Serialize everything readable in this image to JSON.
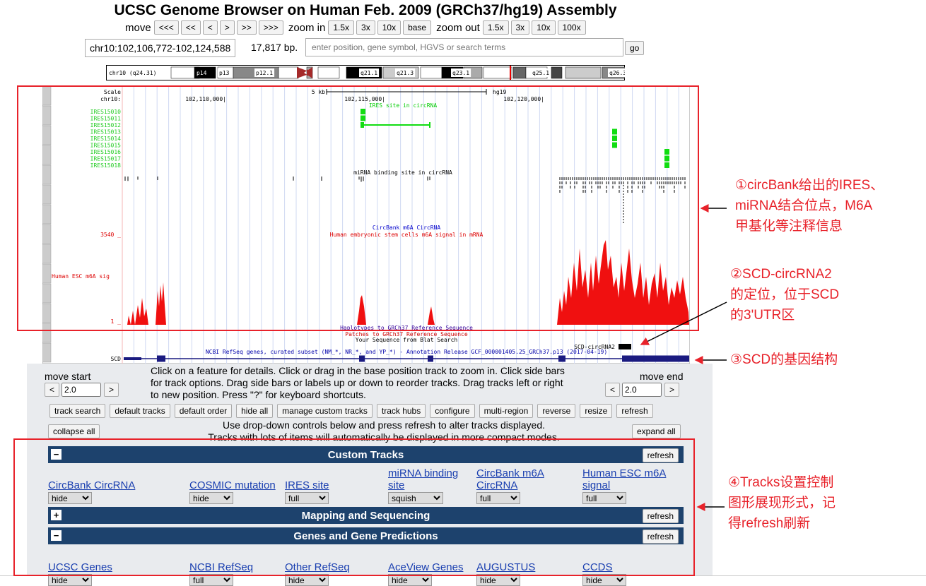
{
  "header": {
    "title": "UCSC Genome Browser on Human Feb. 2009 (GRCh37/hg19) Assembly"
  },
  "navigation": {
    "move_label": "move",
    "move_buttons": [
      "<<<",
      "<<",
      "<",
      ">",
      ">>",
      ">>>"
    ],
    "zoom_in_label": "zoom in",
    "zoom_in_buttons": [
      "1.5x",
      "3x",
      "10x",
      "base"
    ],
    "zoom_out_label": "zoom out",
    "zoom_out_buttons": [
      "1.5x",
      "3x",
      "10x",
      "100x"
    ]
  },
  "position": {
    "range": "chr10:102,106,772-102,124,588",
    "size": "17,817 bp.",
    "search_placeholder": "enter position, gene symbol, HGVS or search terms",
    "go_button": "go"
  },
  "ideogram": {
    "label": "chr10 (q24.31)",
    "bands": [
      "p14",
      "p13",
      "p12.1",
      "q21.1",
      "q21.3",
      "q23.1",
      "q25.1",
      "q26.3"
    ]
  },
  "tracks_image": {
    "scale_label": "Scale",
    "chrom_label": "chr10:",
    "scale_bar": "5 kb",
    "assembly": "hg19",
    "positions": [
      "102,110,000|",
      "102,115,000|",
      "102,120,000|"
    ],
    "ires_title": "IRES site in circRNA",
    "ires_items": [
      "IRES15010",
      "IRES15011",
      "IRES15012",
      "IRES15013",
      "IRES15014",
      "IRES15015",
      "IRES15016",
      "IRES15017",
      "IRES15018"
    ],
    "mirna_title": "miRNA binding site in circRNA",
    "m6a_circrna_title": "CircBank m6A CircRNA",
    "esc_title": "Human embryonic stem cells m6A signal in mRNA",
    "esc_max": "3540 _",
    "esc_label": "Human ESC m6A sig",
    "esc_min": "1 _",
    "haplotypes": "Haplotypes to GRCh37 Reference Sequence",
    "patches": "Patches to GRCh37 Reference Sequence",
    "blat": "Your Sequence from Blat Search",
    "circ_item": "SCD-circRNA2",
    "refseq_title": "NCBI RefSeq genes, curated subset (NM_*, NR_*, and YP_*) - Annotation Release GCF_000001405.25_GRCh37.p13 (2017-04-19)",
    "gene_label": "SCD"
  },
  "controls": {
    "instructions": "Click on a feature for details. Click or drag in the base position track to zoom in. Click side bars for track options. Drag side bars or labels up or down to reorder tracks. Drag tracks left or right to new position. Press \"?\" for keyboard shortcuts.",
    "move_start": {
      "label": "move start",
      "left": "<",
      "value": "2.0",
      "right": ">"
    },
    "move_end": {
      "label": "move end",
      "left": "<",
      "value": "2.0",
      "right": ">"
    },
    "buttons": [
      "track search",
      "default tracks",
      "default order",
      "hide all",
      "manage custom tracks",
      "track hubs",
      "configure",
      "multi-region",
      "reverse",
      "resize",
      "refresh"
    ],
    "collapse_all": "collapse all",
    "expand_all": "expand all",
    "hint_lines": [
      "Use drop-down controls below and press refresh to alter tracks displayed.",
      "Tracks with lots of items will automatically be displayed in more compact modes."
    ]
  },
  "groups": [
    {
      "toggle": "−",
      "title": "Custom Tracks",
      "refresh": "refresh",
      "tracks": [
        {
          "name": "CircBank CircRNA",
          "mode": "hide"
        },
        {
          "name": "COSMIC mutation",
          "mode": "hide"
        },
        {
          "name": "IRES site",
          "mode": "full"
        },
        {
          "name": "miRNA binding site",
          "mode": "squish"
        },
        {
          "name": "CircBank m6A CircRNA",
          "mode": "full"
        },
        {
          "name": "Human ESC m6A signal",
          "mode": "full"
        }
      ]
    },
    {
      "toggle": "+",
      "title": "Mapping and Sequencing",
      "refresh": "refresh"
    },
    {
      "toggle": "−",
      "title": "Genes and Gene Predictions",
      "refresh": "refresh",
      "tracks": [
        {
          "name": "UCSC Genes",
          "mode": "hide"
        },
        {
          "name": "NCBI RefSeq",
          "mode": "full"
        },
        {
          "name": "Other RefSeq",
          "mode": "hide"
        },
        {
          "name": "AceView Genes",
          "mode": "hide"
        },
        {
          "name": "AUGUSTUS",
          "mode": "hide"
        },
        {
          "name": "CCDS",
          "mode": "hide"
        }
      ]
    }
  ],
  "annotations": [
    {
      "lines": [
        "①circBank给出的IRES、",
        "miRNA结合位点，M6A",
        "甲基化等注释信息"
      ]
    },
    {
      "lines": [
        "②SCD-circRNA2",
        "的定位，位于SCD",
        "的3'UTR区"
      ]
    },
    {
      "lines": [
        "③SCD的基因结构"
      ]
    },
    {
      "lines": [
        "④Tracks设置控制",
        "图形展现形式，记",
        "得refresh刷新"
      ]
    }
  ]
}
